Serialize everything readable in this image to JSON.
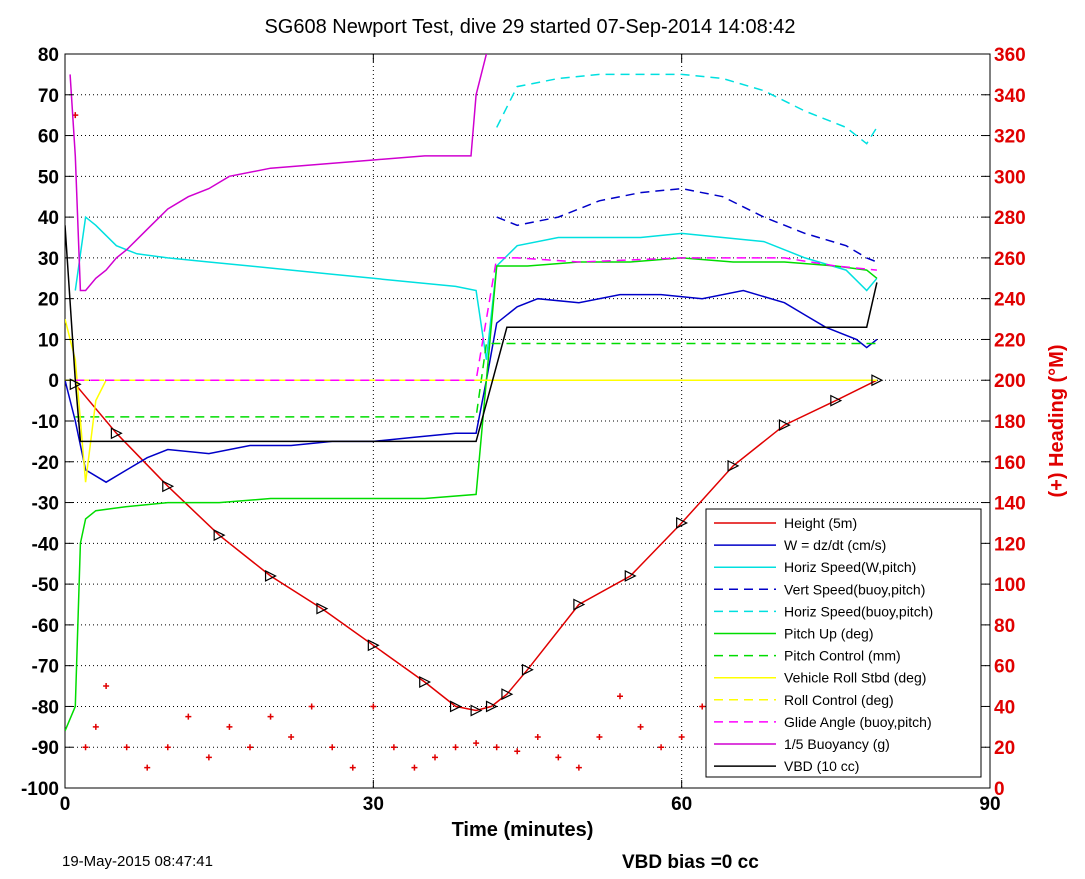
{
  "title": "SG608 Newport Test, dive 29 started 07-Sep-2014 14:08:42",
  "footer_left": "19-May-2015 08:47:41",
  "footer_right": "VBD bias =0 cc",
  "chart_data": {
    "type": "line",
    "title": "SG608 Newport Test, dive 29 started 07-Sep-2014 14:08:42",
    "xlabel": "Time (minutes)",
    "ylabel": "",
    "y2label": "(+) Heading (°M)",
    "xlim": [
      0,
      90
    ],
    "ylim": [
      -100,
      80
    ],
    "y2lim": [
      0,
      360
    ],
    "xticks": [
      0,
      30,
      60,
      90
    ],
    "yticks": [
      80,
      70,
      60,
      50,
      40,
      30,
      20,
      10,
      0,
      -10,
      -20,
      -30,
      -40,
      -50,
      -60,
      -70,
      -80,
      -90,
      -100
    ],
    "y2ticks": [
      360,
      340,
      320,
      300,
      280,
      260,
      240,
      220,
      200,
      180,
      160,
      140,
      120,
      100,
      80,
      60,
      40,
      20,
      0
    ],
    "grid": true,
    "legend_position": "bottom-right",
    "colors": {
      "red": "#e00000",
      "blue": "#0000c8",
      "cyan": "#00e0e0",
      "green": "#00dc00",
      "yellow": "#ffff00",
      "magenta": "#ff00ff",
      "purple": "#d000d0",
      "black": "#000000"
    },
    "series": [
      {
        "name": "Height (5m)",
        "color": "#e00000",
        "dash": "solid",
        "x": [
          1,
          5,
          10,
          15,
          20,
          25,
          30,
          35,
          38,
          40,
          41.5,
          43,
          45,
          50,
          55,
          60,
          65,
          70,
          75,
          79
        ],
        "y": [
          -1,
          -13,
          -26,
          -38,
          -48,
          -56,
          -65,
          -74,
          -80,
          -81,
          -80,
          -77,
          -71,
          -55,
          -48,
          -35,
          -21,
          -11,
          -5,
          0
        ]
      },
      {
        "name": "W = dz/dt (cm/s)",
        "color": "#0000c8",
        "dash": "solid",
        "x": [
          0,
          1,
          2,
          4,
          6,
          8,
          10,
          14,
          18,
          22,
          26,
          30,
          34,
          38,
          40,
          41,
          42,
          44,
          46,
          50,
          54,
          58,
          62,
          66,
          70,
          72,
          74,
          77,
          78,
          79
        ],
        "y": [
          0,
          -10,
          -22,
          -25,
          -22,
          -19,
          -17,
          -18,
          -16,
          -16,
          -15,
          -15,
          -14,
          -13,
          -13,
          0,
          14,
          18,
          20,
          19,
          21,
          21,
          20,
          22,
          19,
          16,
          13,
          10,
          8,
          10
        ]
      },
      {
        "name": "Horiz Speed(W,pitch)",
        "color": "#00e0e0",
        "dash": "solid",
        "x": [
          1,
          2,
          3,
          5,
          7,
          10,
          14,
          18,
          22,
          26,
          30,
          34,
          38,
          40,
          41,
          42,
          44,
          48,
          52,
          56,
          60,
          64,
          68,
          72,
          76,
          78,
          79
        ],
        "y": [
          22,
          40,
          38,
          33,
          31,
          30,
          29,
          28,
          27,
          26,
          25,
          24,
          23,
          22,
          5,
          28,
          33,
          35,
          35,
          35,
          36,
          35,
          34,
          30,
          27,
          22,
          25
        ]
      },
      {
        "name": "Vert Speed(buoy,pitch)",
        "color": "#0000c8",
        "dash": "dashed",
        "x": [
          42,
          44,
          48,
          52,
          56,
          60,
          64,
          68,
          72,
          76,
          78,
          79
        ],
        "y": [
          40,
          38,
          40,
          44,
          46,
          47,
          45,
          40,
          36,
          33,
          30,
          29
        ]
      },
      {
        "name": "Horiz Speed(buoy,pitch)",
        "color": "#00e0e0",
        "dash": "dashed",
        "x": [
          42,
          44,
          48,
          52,
          56,
          60,
          64,
          68,
          72,
          76,
          78,
          79
        ],
        "y": [
          62,
          72,
          74,
          75,
          75,
          75,
          74,
          71,
          66,
          62,
          58,
          62
        ]
      },
      {
        "name": "Pitch Up (deg)",
        "color": "#00dc00",
        "dash": "solid",
        "x": [
          0,
          1,
          1.5,
          2,
          3,
          6,
          10,
          15,
          20,
          25,
          30,
          35,
          40,
          41,
          42,
          45,
          50,
          55,
          60,
          65,
          70,
          75,
          78,
          79
        ],
        "y": [
          -86,
          -80,
          -40,
          -34,
          -32,
          -31,
          -30,
          -30,
          -29,
          -29,
          -29,
          -29,
          -28,
          0,
          28,
          28,
          29,
          29,
          30,
          29,
          29,
          28,
          27,
          25
        ]
      },
      {
        "name": "Pitch Control (mm)",
        "color": "#00dc00",
        "dash": "dashed",
        "x": [
          1,
          2,
          40,
          41,
          42,
          79
        ],
        "y": [
          -9,
          -9,
          -9,
          9,
          9,
          9
        ]
      },
      {
        "name": "Vehicle Roll Stbd (deg)",
        "color": "#ffff00",
        "dash": "solid",
        "x": [
          0,
          1,
          2,
          3,
          4,
          6,
          10,
          20,
          30,
          40,
          42,
          44,
          46,
          50,
          60,
          70,
          79
        ],
        "y": [
          15,
          5,
          -25,
          -5,
          0,
          0,
          0,
          0,
          0,
          0,
          0,
          0,
          0,
          0,
          0,
          0,
          0
        ]
      },
      {
        "name": "Roll Control (deg)",
        "color": "#ffff00",
        "dash": "dashed",
        "x": [
          0,
          1,
          2,
          40,
          42,
          79
        ],
        "y": [
          0,
          0,
          0,
          0,
          0,
          0
        ]
      },
      {
        "name": "Glide Angle (buoy,pitch)",
        "color": "#ff00ff",
        "dash": "dashed",
        "x": [
          1,
          40,
          42,
          44,
          50,
          60,
          70,
          75,
          79
        ],
        "y": [
          0,
          0,
          30,
          30,
          29,
          30,
          30,
          28,
          27
        ]
      },
      {
        "name": "1/5 Buoyancy (g)",
        "color": "#d000d0",
        "dash": "solid",
        "x": [
          0.5,
          1,
          1.5,
          2,
          3,
          4,
          5,
          6,
          8,
          10,
          12,
          14,
          16,
          20,
          25,
          30,
          35,
          39.5,
          40,
          41
        ],
        "y": [
          75,
          55,
          22,
          22,
          25,
          27,
          30,
          32,
          37,
          42,
          45,
          47,
          50,
          52,
          53,
          54,
          55,
          55,
          70,
          80
        ]
      },
      {
        "name": "VBD (10 cc)",
        "color": "#000000",
        "dash": "solid",
        "x": [
          0,
          1,
          1.5,
          40,
          43,
          44,
          78,
          79
        ],
        "y": [
          38,
          0,
          -15,
          -15,
          13,
          13,
          13,
          24
        ]
      }
    ],
    "heading_scatter": {
      "color": "#e00000",
      "x": [
        1,
        2,
        3,
        4,
        6,
        8,
        10,
        12,
        14,
        16,
        18,
        20,
        22,
        24,
        26,
        28,
        30,
        32,
        34,
        36,
        38,
        40,
        42,
        44,
        46,
        48,
        50,
        52,
        54,
        56,
        58,
        60,
        62,
        64,
        66,
        68,
        70
      ],
      "y": [
        330,
        20,
        30,
        50,
        20,
        10,
        20,
        35,
        15,
        30,
        20,
        35,
        25,
        40,
        20,
        10,
        40,
        20,
        10,
        15,
        20,
        22,
        20,
        18,
        25,
        15,
        10,
        25,
        45,
        30,
        20,
        25,
        40,
        55,
        40,
        30,
        28
      ]
    }
  }
}
